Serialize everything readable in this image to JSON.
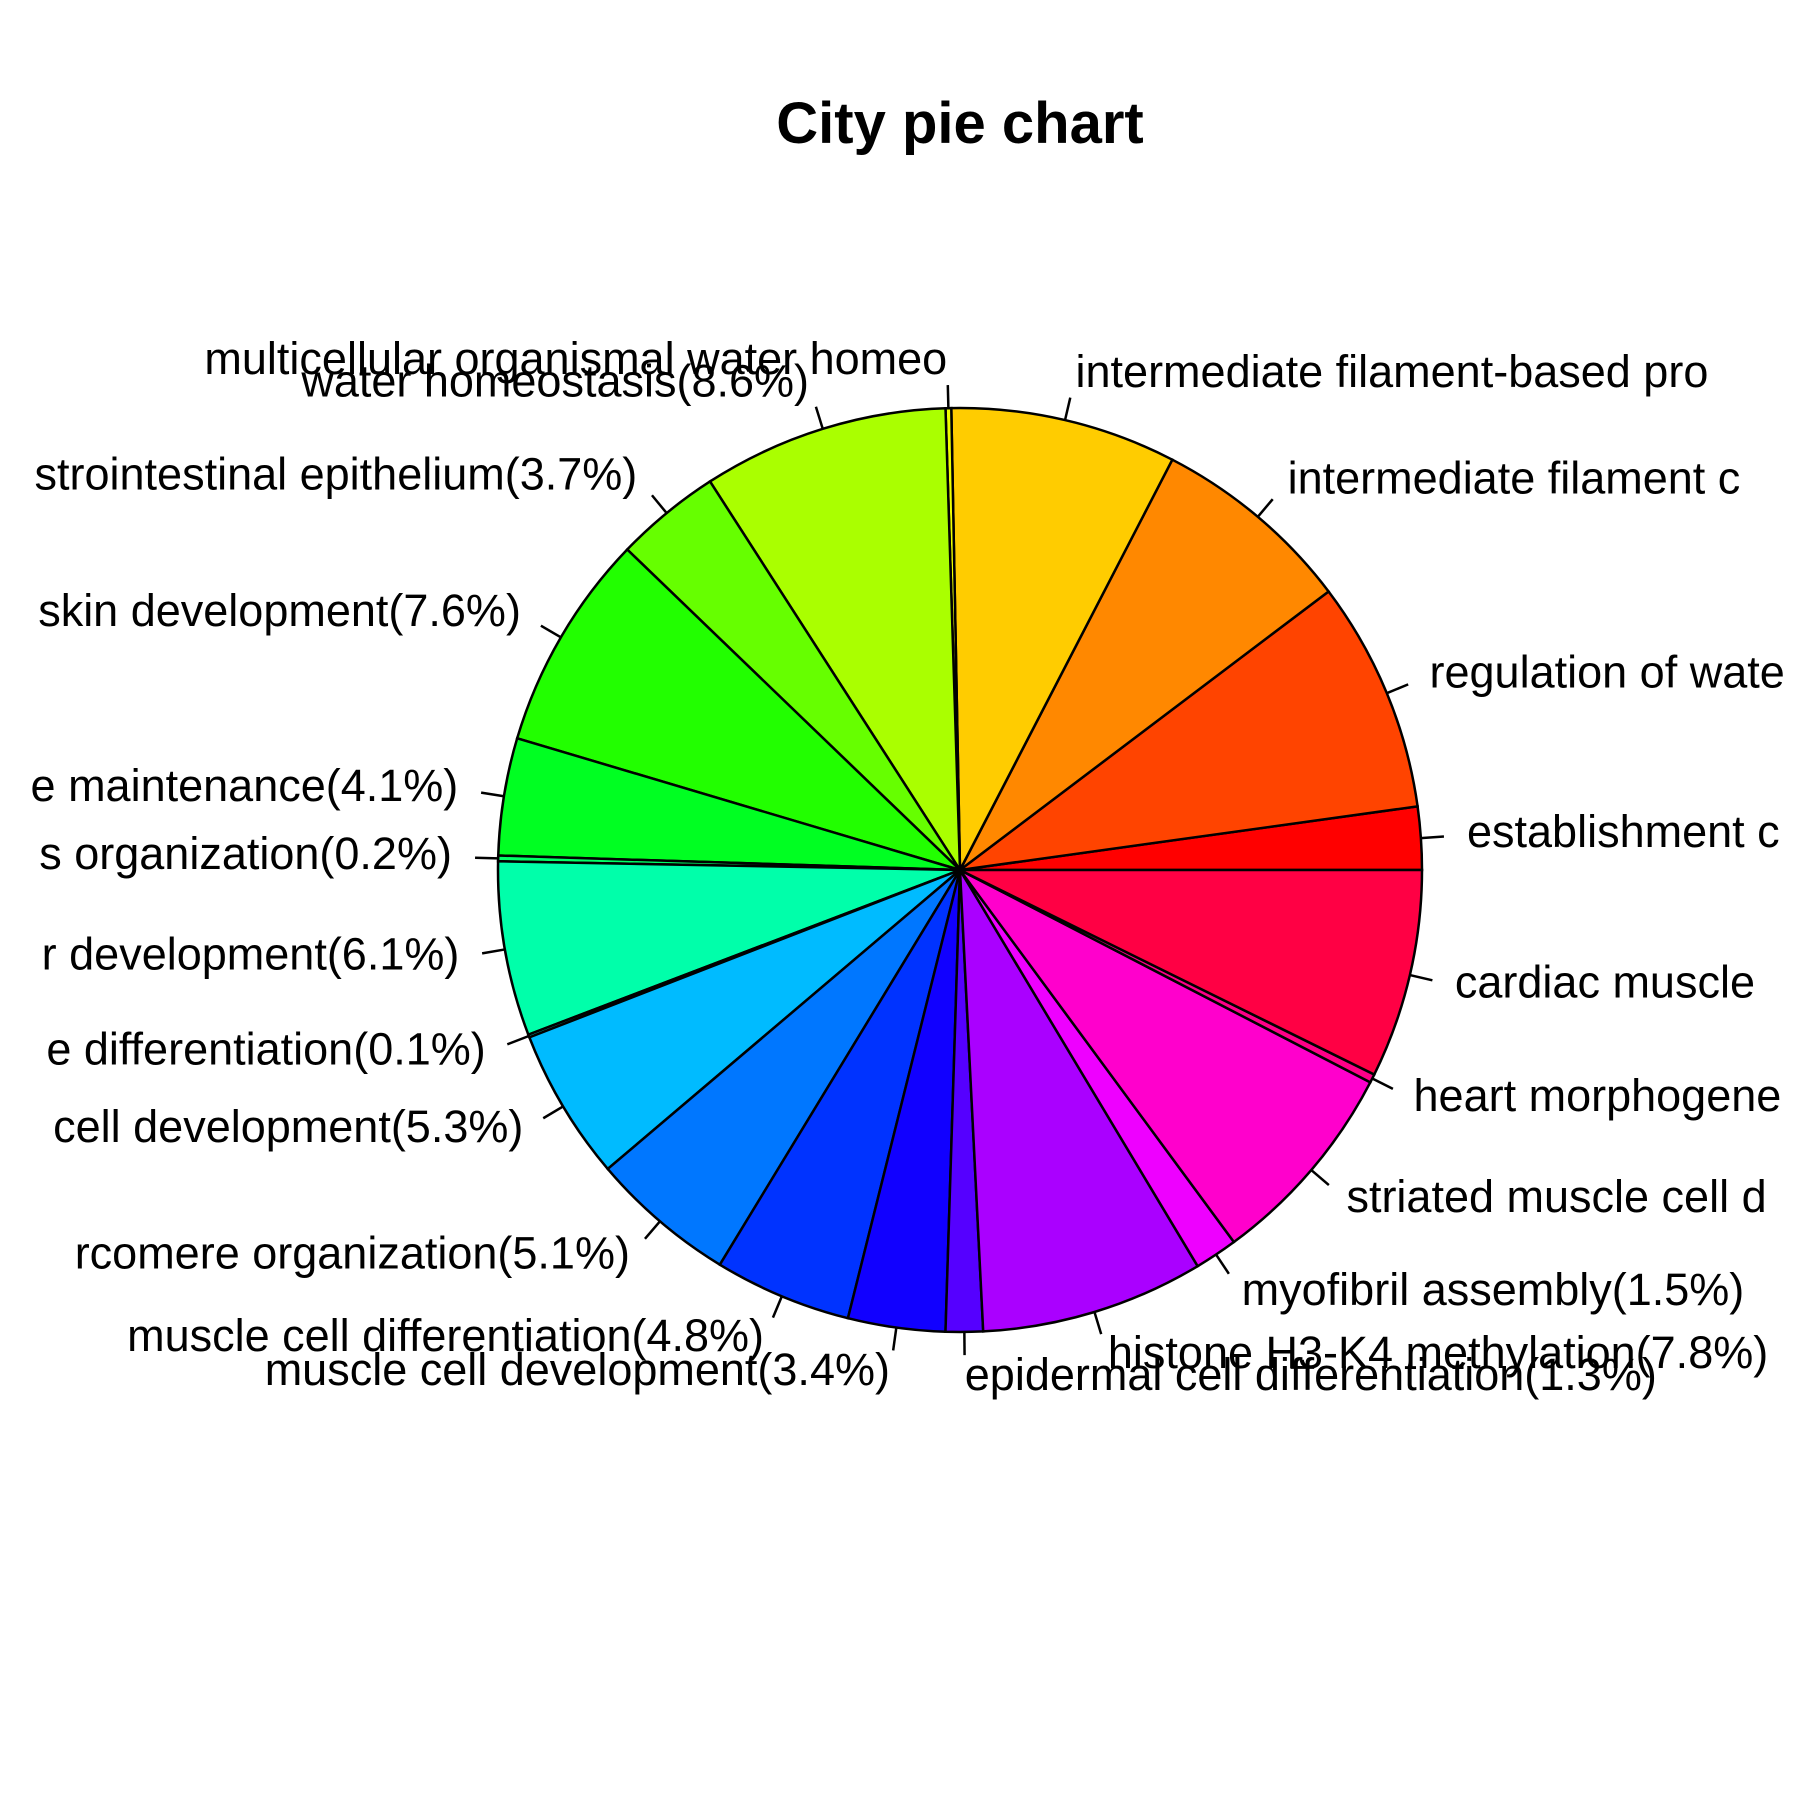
{
  "chart_data": {
    "type": "pie",
    "title": "City pie chart",
    "slices": [
      {
        "label": "establishment c",
        "value": 2.2,
        "color": "#FF0000"
      },
      {
        "label": "regulation of wate",
        "value": 8.1,
        "color": "#FF4400"
      },
      {
        "label": "intermediate filament c",
        "value": 7.1,
        "color": "#FF8800"
      },
      {
        "label": "intermediate filament-based pro",
        "value": 7.9,
        "color": "#FFCC00"
      },
      {
        "label": "multicellular organismal water homeo",
        "value": 0.2,
        "color": "#EEFF00"
      },
      {
        "label": "water homeostasis(8.6%)",
        "value": 8.6,
        "color": "#AAFF00"
      },
      {
        "label": "strointestinal epithelium(3.7%)",
        "value": 3.7,
        "color": "#66FF00"
      },
      {
        "label": "skin development(7.6%)",
        "value": 7.6,
        "color": "#22FF00"
      },
      {
        "label": "e maintenance(4.1%)",
        "value": 4.1,
        "color": "#00FF22"
      },
      {
        "label": "s organization(0.2%)",
        "value": 0.2,
        "color": "#00FF66"
      },
      {
        "label": "r development(6.1%)",
        "value": 6.1,
        "color": "#00FFAA"
      },
      {
        "label": "e differentiation(0.1%)",
        "value": 0.1,
        "color": "#00FFEE"
      },
      {
        "label": "cell development(5.3%)",
        "value": 5.3,
        "color": "#00BBFF"
      },
      {
        "label": "rcomere organization(5.1%)",
        "value": 5.1,
        "color": "#0077FF"
      },
      {
        "label": "muscle cell differentiation(4.8%)",
        "value": 4.8,
        "color": "#0033FF"
      },
      {
        "label": "muscle cell development(3.4%)",
        "value": 3.4,
        "color": "#1100FF"
      },
      {
        "label": "epidermal cell differentiation(1.3%)",
        "value": 1.3,
        "color": "#5500FF"
      },
      {
        "label": "histone H3-K4 methylation(7.8%)",
        "value": 7.8,
        "color": "#AA00FF"
      },
      {
        "label": "myofibril assembly(1.5%)",
        "value": 1.5,
        "color": "#EE00FF"
      },
      {
        "label": "striated muscle cell d",
        "value": 7.3,
        "color": "#FF00CC"
      },
      {
        "label": "heart morphogene",
        "value": 0.3,
        "color": "#FF0088"
      },
      {
        "label": "cardiac muscle",
        "value": 7.3,
        "color": "#FF0044"
      }
    ]
  }
}
